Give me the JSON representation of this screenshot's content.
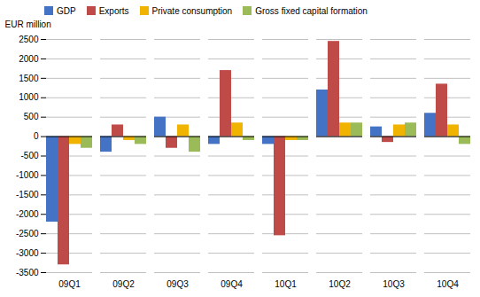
{
  "chart_data": {
    "type": "bar",
    "ylabel": "EUR million",
    "categories": [
      "09Q1",
      "09Q2",
      "09Q3",
      "09Q4",
      "10Q1",
      "10Q2",
      "10Q3",
      "10Q4"
    ],
    "series": [
      {
        "name": "GDP",
        "color": "#4472C4",
        "values": [
          -2200,
          -400,
          500,
          -200,
          -200,
          1200,
          250,
          600
        ]
      },
      {
        "name": "Exports",
        "color": "#BE4B48",
        "values": [
          -3300,
          300,
          -300,
          1700,
          -2550,
          2450,
          -150,
          1350
        ]
      },
      {
        "name": "Private consumption",
        "color": "#F0B400",
        "values": [
          -200,
          -100,
          300,
          350,
          -100,
          350,
          300,
          300
        ]
      },
      {
        "name": "Gross fixed capital formation",
        "color": "#9BBB59",
        "values": [
          -300,
          -200,
          -400,
          -100,
          -100,
          350,
          350,
          -200
        ]
      }
    ],
    "ylim": [
      -3500,
      2500
    ],
    "yticks": [
      -3500,
      -3000,
      -2500,
      -2000,
      -1500,
      -1000,
      -500,
      0,
      500,
      1000,
      1500,
      2000,
      2500
    ],
    "grid": true,
    "legend": "top"
  }
}
